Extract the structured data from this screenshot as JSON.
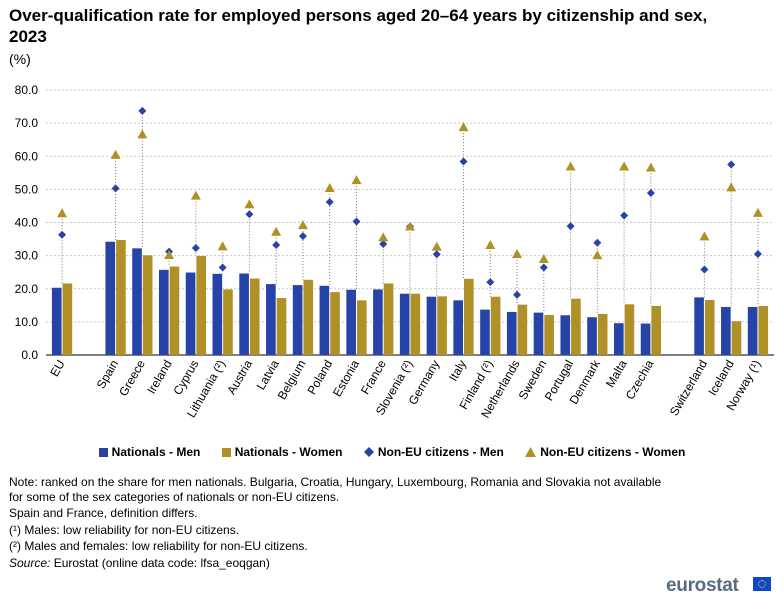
{
  "title": "Over-qualification rate for employed persons aged 20–64 years by citizenship and sex, 2023",
  "unit": "(%)",
  "chart_data": {
    "type": "bar",
    "ylim": [
      0,
      80
    ],
    "yticks": [
      "0.0",
      "10.0",
      "20.0",
      "30.0",
      "40.0",
      "50.0",
      "60.0",
      "70.0",
      "80.0"
    ],
    "categories": [
      "EU",
      "Spain",
      "Greece",
      "Ireland",
      "Cyprus",
      "Lithuania (²)",
      "Austria",
      "Latvia",
      "Belgium",
      "Poland",
      "Estonia",
      "France",
      "Slovenia (²)",
      "Germany",
      "Italy",
      "Finland (²)",
      "Netherlands",
      "Sweden",
      "Portugal",
      "Denmark",
      "Malta",
      "Czechia",
      "Switzerland",
      "Iceland",
      "Norway (¹)"
    ],
    "groups": [
      0,
      1,
      1,
      1,
      1,
      1,
      1,
      1,
      1,
      1,
      1,
      1,
      1,
      1,
      1,
      1,
      1,
      1,
      1,
      1,
      1,
      1,
      2,
      2,
      2
    ],
    "series": [
      {
        "name": "Nationals - Men",
        "type": "bar",
        "color": "#2644a8",
        "values": [
          20.3,
          34.2,
          32.2,
          25.7,
          24.9,
          24.5,
          24.6,
          21.4,
          21.1,
          20.9,
          19.7,
          19.8,
          18.5,
          17.6,
          16.5,
          13.7,
          13.0,
          12.8,
          12.0,
          11.4,
          9.6,
          9.5,
          17.4,
          14.5,
          14.5
        ]
      },
      {
        "name": "Nationals - Women",
        "type": "bar",
        "color": "#b09128",
        "values": [
          21.6,
          34.7,
          30.1,
          26.7,
          29.9,
          19.8,
          23.1,
          17.2,
          22.7,
          19.0,
          16.5,
          21.6,
          18.5,
          17.7,
          23.0,
          17.6,
          15.2,
          12.1,
          17.0,
          12.4,
          15.3,
          14.8,
          16.6,
          10.2,
          14.8
        ]
      },
      {
        "name": "Non-EU citizens - Men",
        "type": "marker",
        "marker": "diamond",
        "color": "#2644a8",
        "values": [
          36.3,
          50.3,
          73.7,
          31.2,
          32.3,
          26.4,
          42.5,
          33.2,
          35.9,
          46.2,
          40.3,
          33.5,
          38.8,
          30.4,
          58.4,
          22.0,
          18.2,
          26.4,
          38.9,
          33.9,
          42.1,
          48.9,
          25.8,
          57.5,
          30.5
        ]
      },
      {
        "name": "Non-EU citizens - Women",
        "type": "marker",
        "marker": "triangle",
        "color": "#b09128",
        "values": [
          42.8,
          60.4,
          66.6,
          30.2,
          48.1,
          32.8,
          45.5,
          37.2,
          39.2,
          50.4,
          52.8,
          35.5,
          38.8,
          32.7,
          68.8,
          33.2,
          30.5,
          29.0,
          56.9,
          30.1,
          56.9,
          56.6,
          35.8,
          50.6,
          42.9
        ]
      }
    ]
  },
  "legend": {
    "nat_men": "Nationals - Men",
    "nat_women": "Nationals - Women",
    "noneu_men": "Non-EU citizens - Men",
    "noneu_women": "Non-EU citizens - Women"
  },
  "notes": {
    "line1": "Note: ranked on the share for men nationals. Bulgaria, Croatia, Hungary, Luxembourg, Romania and Slovakia not available for some of the sex categories of nationals or non-EU citizens.",
    "line2": "Spain and France, definition differs.",
    "line3": "(¹) Males: low reliability for non-EU citizens.",
    "line4": "(²) Males and females: low reliability for non-EU citizens.",
    "source_label": "Source:",
    "source_text": "Eurostat (online data code: lfsa_eoqgan)"
  },
  "brand": {
    "name": "eurostat"
  }
}
